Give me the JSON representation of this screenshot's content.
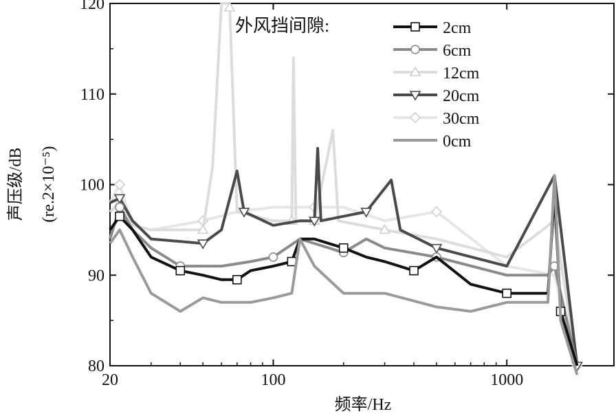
{
  "chart_data": {
    "type": "line",
    "title": "",
    "xlabel": "频率/Hz",
    "ylabel": "声压级/dB",
    "ylabel2": "(re.2×10⁻⁵)",
    "xscale": "log",
    "xlim": [
      20,
      2875
    ],
    "ylim": [
      80,
      120
    ],
    "xticks": [
      20,
      100,
      1000
    ],
    "xtick_labels": [
      "20",
      "100",
      "1000"
    ],
    "yticks": [
      80,
      90,
      100,
      110,
      120
    ],
    "ytick_labels": [
      "80",
      "90",
      "100",
      "110",
      "120"
    ],
    "legend_title": "外风挡间隙:",
    "legend_position": "top-right",
    "grid": false,
    "series": [
      {
        "name": "2cm",
        "color": "#111111",
        "marker": "square",
        "x": [
          20,
          22,
          25,
          30,
          40,
          50,
          60,
          70,
          80,
          100,
          120,
          130,
          150,
          200,
          250,
          300,
          400,
          500,
          700,
          1000,
          1500,
          1600,
          1700,
          2000
        ],
        "y": [
          95,
          96.5,
          95,
          92,
          90.5,
          90,
          89.5,
          89.5,
          90.5,
          91,
          91.5,
          94,
          94,
          93,
          92,
          91.5,
          90.5,
          92,
          89,
          88,
          88,
          99,
          86,
          80
        ]
      },
      {
        "name": "6cm",
        "color": "#8a8a8a",
        "marker": "circle",
        "x": [
          20,
          22,
          25,
          30,
          40,
          60,
          80,
          100,
          130,
          150,
          200,
          250,
          300,
          500,
          1000,
          1500,
          1600,
          2000
        ],
        "y": [
          94,
          97.5,
          95,
          93,
          91,
          91,
          91.5,
          92,
          94,
          93.5,
          92.5,
          94,
          93,
          92,
          90,
          90,
          91,
          80
        ]
      },
      {
        "name": "12cm",
        "color": "#dcdcdc",
        "marker": "triangle",
        "x": [
          20,
          22,
          25,
          30,
          50,
          55,
          60,
          65,
          70,
          100,
          120,
          122,
          125,
          150,
          180,
          190,
          300,
          500,
          1000,
          1600,
          2000
        ],
        "y": [
          97,
          98,
          95.5,
          95,
          95,
          102,
          120,
          120,
          97,
          96,
          96,
          114,
          96,
          96,
          106,
          96,
          95,
          94,
          92,
          96,
          80
        ]
      },
      {
        "name": "20cm",
        "color": "#4a4a4a",
        "marker": "triangle-down",
        "x": [
          20,
          22,
          25,
          30,
          50,
          60,
          70,
          75,
          100,
          130,
          150,
          155,
          160,
          250,
          320,
          350,
          500,
          1000,
          1600,
          2000
        ],
        "y": [
          98,
          98.5,
          96,
          94,
          93.5,
          95,
          101.5,
          97,
          95.5,
          96,
          96,
          104,
          96,
          97,
          100.5,
          95,
          93,
          91,
          101,
          80
        ]
      },
      {
        "name": "30cm",
        "color": "#e6e6e6",
        "marker": "diamond",
        "x": [
          20,
          22,
          25,
          30,
          50,
          70,
          100,
          150,
          200,
          300,
          500,
          1000,
          1600,
          2000
        ],
        "y": [
          98,
          100,
          95.5,
          95,
          96,
          97,
          97.5,
          97.5,
          97.5,
          96,
          97,
          91,
          90,
          80
        ]
      },
      {
        "name": "0cm",
        "color": "#9a9a9a",
        "marker": "none",
        "x": [
          20,
          22,
          25,
          30,
          40,
          50,
          60,
          80,
          100,
          120,
          130,
          150,
          200,
          300,
          500,
          700,
          1000,
          1500,
          1600,
          1700,
          2000
        ],
        "y": [
          93.5,
          95,
          92,
          88,
          86,
          87.5,
          87,
          87,
          87.5,
          88,
          94,
          91,
          88,
          88,
          86.5,
          86,
          87,
          87,
          101,
          85,
          79
        ]
      }
    ]
  }
}
